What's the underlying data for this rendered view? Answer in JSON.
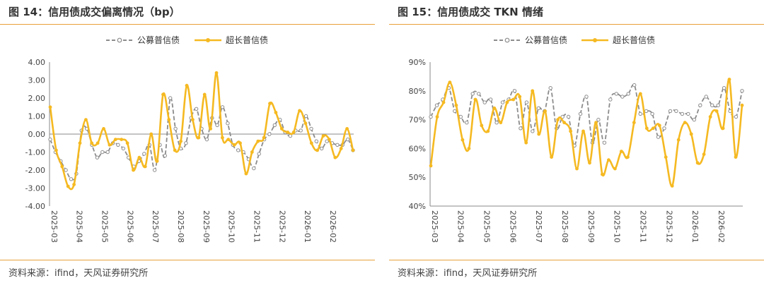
{
  "source": "资料来源：ifind，天风证券研究所",
  "chart_data": [
    {
      "type": "line",
      "title": "图 14：信用债成交偏离情况（bp）",
      "ylim": [
        -4,
        4
      ],
      "yticks": [
        "4.00",
        "3.00",
        "2.00",
        "1.00",
        "0.00",
        "-1.00",
        "-2.00",
        "-3.00",
        "-4.00"
      ],
      "xticks": [
        "2025-03",
        "2025-04",
        "2025-05",
        "2025-06",
        "2025-07",
        "2025-08",
        "2025-09",
        "2025-10",
        "2025-11",
        "2025-12",
        "2026-01",
        "2026-02"
      ],
      "series": [
        {
          "name": "公募普信债",
          "color": "#8c8c8c",
          "style": "dashed",
          "values": [
            -0.3,
            -1.0,
            -1.5,
            -2.0,
            -2.5,
            -2.2,
            0.2,
            0.3,
            -0.6,
            -1.3,
            -1.0,
            -1.0,
            -0.5,
            -0.6,
            -0.8,
            -1.3,
            -1.8,
            -1.5,
            -1.1,
            -0.6,
            -2.0,
            -0.6,
            -1.2,
            2.0,
            0.3,
            -0.8,
            -0.5,
            0.9,
            1.4,
            0.3,
            -0.3,
            0.9,
            0.5,
            1.5,
            0.6,
            -0.6,
            -0.9,
            -1.0,
            -1.4,
            -1.9,
            -1.1,
            -0.3,
            0.0,
            0.5,
            0.8,
            0.1,
            -0.1,
            0.2,
            0.2,
            1.0,
            0.3,
            -0.4,
            -0.8,
            -0.4,
            -0.5,
            -0.6,
            -0.6,
            -0.3,
            -0.9
          ]
        },
        {
          "name": "超长普信债",
          "color": "#f5b921",
          "style": "solid",
          "values": [
            1.5,
            -0.9,
            -1.8,
            -2.9,
            -2.8,
            -0.5,
            0.8,
            -0.5,
            -0.5,
            0.3,
            -0.6,
            -0.3,
            -0.3,
            -0.5,
            -2.0,
            -1.3,
            -1.8,
            0.0,
            -1.5,
            2.2,
            0.8,
            -0.9,
            -0.4,
            2.7,
            0.8,
            -0.2,
            2.2,
            0.3,
            3.4,
            -0.2,
            -0.3,
            -0.6,
            -0.5,
            -2.2,
            -1.0,
            -0.4,
            -0.2,
            1.7,
            1.2,
            0.3,
            0.1,
            0.1,
            1.3,
            0.6,
            -0.5,
            -0.9,
            -0.1,
            -0.3,
            -1.3,
            -0.8,
            0.3,
            -0.9
          ]
        }
      ]
    },
    {
      "type": "line",
      "title": "图 15：信用债成交 TKN 情绪",
      "ylim": [
        40,
        90
      ],
      "yticks": [
        "90%",
        "80%",
        "70%",
        "60%",
        "50%",
        "40%"
      ],
      "xticks": [
        "2025-03",
        "2025-04",
        "2025-05",
        "2025-06",
        "2025-07",
        "2025-08",
        "2025-09",
        "2025-10",
        "2025-11",
        "2025-12",
        "2026-01",
        "2026-02"
      ],
      "series": [
        {
          "name": "公募普信债",
          "color": "#8c8c8c",
          "style": "dashed",
          "values": [
            71,
            75,
            77,
            81,
            73,
            71,
            69,
            79,
            79,
            76,
            77,
            69,
            76,
            77,
            80,
            67,
            76,
            66,
            74,
            73,
            81,
            67,
            71,
            71,
            61,
            72,
            78,
            62,
            70,
            62,
            77,
            79,
            78,
            79,
            82,
            72,
            73,
            72,
            64,
            67,
            73,
            73,
            72,
            72,
            70,
            75,
            78,
            75,
            75,
            81,
            73,
            71,
            80
          ]
        },
        {
          "name": "超长普信债",
          "color": "#f5b921",
          "style": "solid",
          "values": [
            54,
            71,
            76,
            83,
            75,
            63,
            60,
            77,
            68,
            66,
            74,
            69,
            76,
            77,
            78,
            62,
            80,
            65,
            73,
            57,
            70,
            69,
            66,
            53,
            66,
            55,
            69,
            51,
            56,
            53,
            59,
            57,
            69,
            79,
            67,
            67,
            68,
            57,
            47,
            63,
            69,
            65,
            55,
            58,
            71,
            73,
            67,
            84,
            57,
            75
          ]
        }
      ]
    }
  ]
}
